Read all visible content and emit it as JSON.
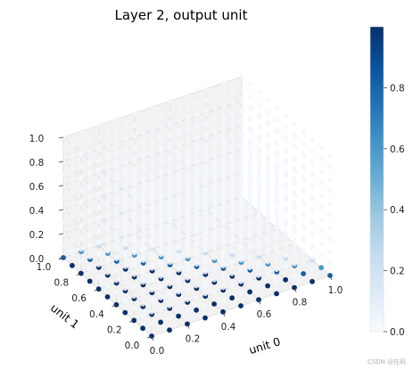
{
  "chart_data": {
    "type": "scatter",
    "title": "Layer 2, output unit",
    "xlabel": "unit 0",
    "ylabel": "unit 1",
    "zlabel": "",
    "xlim": [
      0,
      1
    ],
    "ylim": [
      0,
      1
    ],
    "zlim": [
      0,
      1
    ],
    "x_ticks": [
      "0.0",
      "0.2",
      "0.4",
      "0.6",
      "0.8",
      "1.0"
    ],
    "y_ticks": [
      "0.0",
      "0.2",
      "0.4",
      "0.6",
      "0.8",
      "1.0"
    ],
    "z_ticks": [
      "0.0",
      "0.2",
      "0.4",
      "0.6",
      "0.8",
      "1.0"
    ],
    "colorbar": {
      "colormap": "Blues",
      "range": [
        0,
        1
      ],
      "ticks": [
        "0.0",
        "0.2",
        "0.4",
        "0.6",
        "0.8"
      ]
    },
    "grid": true,
    "grid_values": [
      0.0,
      0.1,
      0.2,
      0.3,
      0.4,
      0.5,
      0.6,
      0.7,
      0.8,
      0.9,
      1.0
    ],
    "note": "Points form a regular 3-D grid; near-zero output everywhere except the z = 0 plane for small unit 0 / unit 1."
  },
  "colors": {
    "pane": "#f2f2f2",
    "grid": "#dcdcdc",
    "low": "#f7fbff",
    "high": "#08306b"
  },
  "watermark": "CSDN @在码"
}
